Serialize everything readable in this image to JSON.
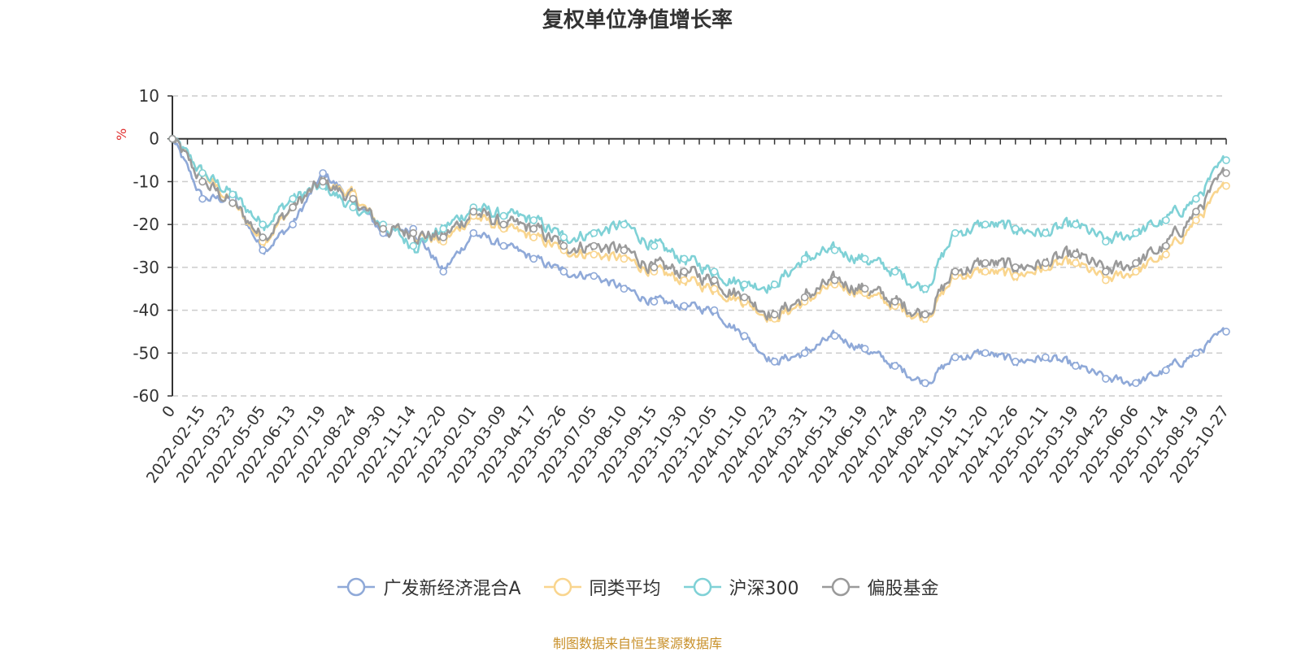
{
  "chart_data": {
    "type": "line",
    "title": "复权单位净值增长率",
    "ylabel": "%",
    "xlabel": "",
    "ylim": [
      -60,
      10
    ],
    "yticks": [
      10,
      0,
      -10,
      -20,
      -30,
      -40,
      -50,
      -60
    ],
    "grid": true,
    "legend_position": "bottom",
    "categories": [
      "0",
      "2022-02-15",
      "2022-03-23",
      "2022-05-05",
      "2022-06-13",
      "2022-07-19",
      "2022-08-24",
      "2022-09-30",
      "2022-11-14",
      "2022-12-20",
      "2023-02-01",
      "2023-03-09",
      "2023-04-17",
      "2023-05-26",
      "2023-07-05",
      "2023-08-10",
      "2023-09-15",
      "2023-10-30",
      "2023-12-05",
      "2024-01-10",
      "2024-02-23",
      "2024-03-31",
      "2024-05-13",
      "2024-06-19",
      "2024-07-24",
      "2024-08-29",
      "2024-10-15",
      "2024-11-20",
      "2024-12-26",
      "2025-02-11",
      "2025-03-19",
      "2025-04-25",
      "2025-06-06",
      "2025-07-14",
      "2025-08-19",
      "2025-10-27"
    ],
    "series": [
      {
        "name": "广发新经济混合A",
        "color": "#8fa9d8",
        "values": [
          0,
          -14,
          -14,
          -26,
          -20,
          -8,
          -14,
          -22,
          -21,
          -31,
          -22,
          -25,
          -28,
          -31,
          -32,
          -35,
          -38,
          -39,
          -40,
          -46,
          -52,
          -50,
          -46,
          -49,
          -53,
          -57,
          -51,
          -50,
          -52,
          -51,
          -53,
          -56,
          -57,
          -54,
          -50,
          -45
        ]
      },
      {
        "name": "同类平均",
        "color": "#f9d58e",
        "values": [
          0,
          -8,
          -15,
          -24,
          -16,
          -10,
          -13,
          -21,
          -22,
          -24,
          -18,
          -21,
          -23,
          -26,
          -27,
          -28,
          -31,
          -33,
          -35,
          -38,
          -42,
          -38,
          -34,
          -36,
          -39,
          -42,
          -32,
          -31,
          -32,
          -30,
          -29,
          -33,
          -31,
          -27,
          -19,
          -11
        ]
      },
      {
        "name": "沪深300",
        "color": "#7fd1d6",
        "values": [
          0,
          -8,
          -13,
          -20,
          -14,
          -11,
          -16,
          -20,
          -25,
          -21,
          -16,
          -18,
          -19,
          -23,
          -22,
          -20,
          -25,
          -28,
          -31,
          -34,
          -34,
          -28,
          -26,
          -28,
          -31,
          -35,
          -22,
          -20,
          -21,
          -22,
          -20,
          -24,
          -22,
          -19,
          -14,
          -5
        ]
      },
      {
        "name": "偏股基金",
        "color": "#9a9a9a",
        "values": [
          0,
          -10,
          -15,
          -23,
          -16,
          -10,
          -14,
          -21,
          -22,
          -23,
          -17,
          -20,
          -21,
          -25,
          -25,
          -26,
          -30,
          -31,
          -33,
          -37,
          -41,
          -37,
          -33,
          -35,
          -38,
          -41,
          -31,
          -29,
          -30,
          -29,
          -27,
          -31,
          -29,
          -25,
          -17,
          -8
        ]
      }
    ]
  },
  "source_note": "制图数据来自恒生聚源数据库"
}
